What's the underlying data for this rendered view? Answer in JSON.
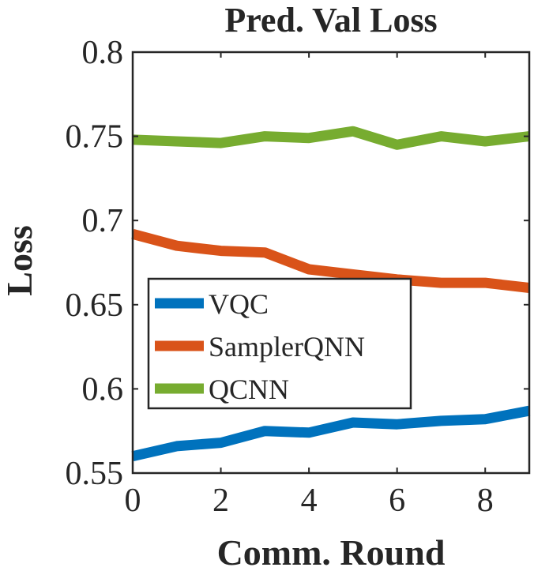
{
  "chart_data": {
    "type": "line",
    "title": "Pred. Val Loss",
    "xlabel": "Comm. Round",
    "ylabel": "Loss",
    "xlim": [
      0,
      9
    ],
    "ylim": [
      0.55,
      0.8
    ],
    "x": [
      0,
      1,
      2,
      3,
      4,
      5,
      6,
      7,
      8,
      9
    ],
    "xticks": [
      0,
      2,
      4,
      6,
      8
    ],
    "xtick_labels": [
      "0",
      "2",
      "4",
      "6",
      "8"
    ],
    "yticks": [
      0.55,
      0.6,
      0.65,
      0.7,
      0.75,
      0.8
    ],
    "ytick_labels": [
      "0.55",
      "0.6",
      "0.65",
      "0.7",
      "0.75",
      "0.8"
    ],
    "grid": false,
    "legend_position": "lower-left",
    "series": [
      {
        "name": "VQC",
        "color": "#0072BD",
        "values": [
          0.56,
          0.566,
          0.568,
          0.575,
          0.574,
          0.58,
          0.579,
          0.581,
          0.582,
          0.587
        ]
      },
      {
        "name": "SamplerQNN",
        "color": "#D95319",
        "values": [
          0.692,
          0.685,
          0.682,
          0.681,
          0.671,
          0.668,
          0.665,
          0.663,
          0.663,
          0.66
        ]
      },
      {
        "name": "QCNN",
        "color": "#77AC30",
        "values": [
          0.748,
          0.747,
          0.746,
          0.75,
          0.749,
          0.753,
          0.745,
          0.75,
          0.747,
          0.75
        ]
      }
    ]
  }
}
